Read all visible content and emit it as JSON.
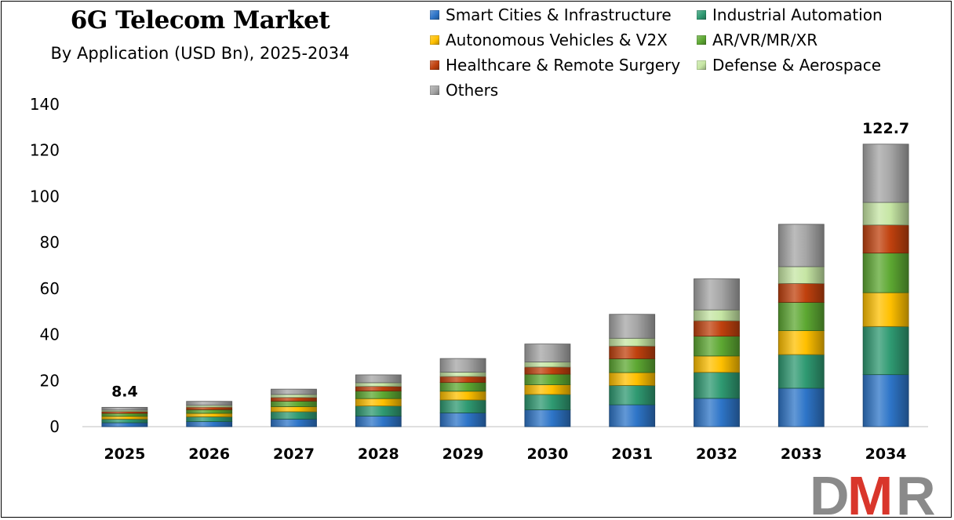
{
  "chart_data": {
    "type": "bar",
    "stacked": true,
    "title": "6G Telecom Market",
    "subtitle": "By Application (USD Bn), 2025-2034",
    "categories": [
      "2025",
      "2026",
      "2027",
      "2028",
      "2029",
      "2030",
      "2031",
      "2032",
      "2033",
      "2034"
    ],
    "ylim": [
      0,
      140
    ],
    "yticks": [
      0,
      20,
      40,
      60,
      80,
      100,
      120,
      140
    ],
    "series": [
      {
        "name": "Smart Cities & Infrastructure",
        "color": "#2E75C8",
        "values": [
          1.7,
          2.2,
          3.3,
          4.6,
          6.0,
          7.3,
          9.5,
          12.3,
          16.7,
          22.6
        ]
      },
      {
        "name": "Industrial Automation",
        "color": "#2F9A72",
        "values": [
          1.6,
          2.1,
          3.2,
          4.4,
          5.6,
          6.7,
          8.4,
          11.3,
          14.6,
          20.9
        ]
      },
      {
        "name": "Autonomous Vehicles & V2X",
        "color": "#FFC000",
        "values": [
          1.2,
          1.5,
          2.2,
          3.2,
          3.8,
          4.2,
          5.6,
          7.1,
          10.4,
          14.7
        ]
      },
      {
        "name": "AR/VR/MR/XR",
        "color": "#5DA832",
        "values": [
          1.3,
          1.6,
          2.4,
          3.3,
          3.8,
          4.6,
          6.0,
          8.6,
          12.3,
          17.2
        ]
      },
      {
        "name": "Healthcare & Remote Surgery",
        "color": "#C0410E",
        "values": [
          0.8,
          1.1,
          1.6,
          2.0,
          2.6,
          3.1,
          5.5,
          6.7,
          8.2,
          12.2
        ]
      },
      {
        "name": "Defense & Aerospace",
        "color": "#C6E6A4",
        "values": [
          0.6,
          0.8,
          1.3,
          1.6,
          1.9,
          2.2,
          3.4,
          4.7,
          7.3,
          9.8
        ]
      },
      {
        "name": "Others",
        "color": "#A6A6A6",
        "values": [
          1.2,
          1.7,
          2.3,
          3.4,
          5.9,
          7.8,
          10.4,
          13.5,
          18.4,
          25.3
        ]
      }
    ],
    "totals": [
      8.4,
      11.0,
      16.3,
      22.5,
      29.6,
      35.9,
      48.8,
      64.2,
      87.9,
      122.7
    ],
    "data_labels": [
      {
        "category": "2025",
        "text": "8.4"
      },
      {
        "category": "2034",
        "text": "122.7"
      }
    ]
  },
  "logo": {
    "text": "DMR",
    "colors": {
      "d": "#8A8A8A",
      "m": "#D9362B",
      "r": "#8A8A8A"
    }
  }
}
